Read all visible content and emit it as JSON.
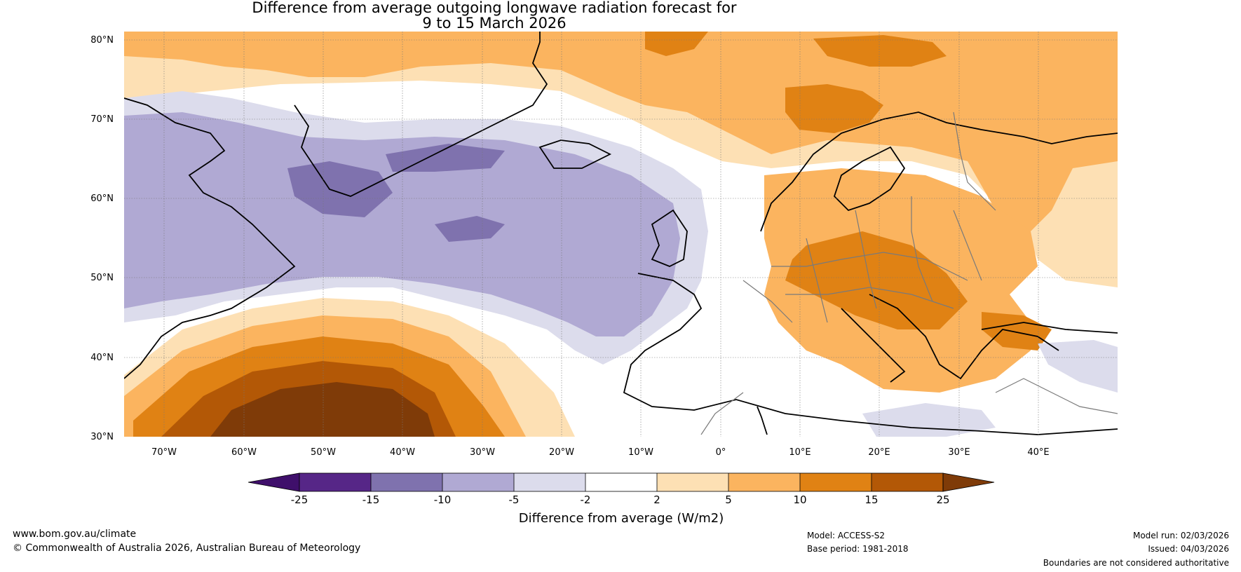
{
  "title": {
    "line1": "Difference from average outgoing longwave radiation forecast for",
    "line2": "9 to 15 March 2026"
  },
  "map": {
    "lat_ticks": [
      "30°N",
      "40°N",
      "50°N",
      "60°N",
      "70°N",
      "80°N"
    ],
    "lon_ticks": [
      "70°W",
      "60°W",
      "50°W",
      "40°W",
      "30°W",
      "20°W",
      "10°W",
      "0°",
      "10°E",
      "20°E",
      "30°E",
      "40°E"
    ],
    "extent": {
      "lon_min": -75,
      "lon_max": 50,
      "lat_min": 30,
      "lat_max": 81
    }
  },
  "legend": {
    "label": "Difference from average (W/m2)",
    "tick_labels": [
      "-25",
      "-15",
      "-10",
      "-5",
      "-2",
      "2",
      "5",
      "10",
      "15",
      "25"
    ],
    "colors": [
      "#3f0f6b",
      "#562687",
      "#7f72ae",
      "#b0a9d3",
      "#dcdcec",
      "#ffffff",
      "#fde0b4",
      "#fbb45f",
      "#e08214",
      "#b35806",
      "#7f3b08"
    ]
  },
  "footer": {
    "website": "www.bom.gov.au/climate",
    "copyright": "© Commonwealth of Australia 2026, Australian Bureau of Meteorology",
    "model": "Model: ACCESS-S2",
    "base_period": "Base period: 1981-2018",
    "model_run": "Model run: 02/03/2026",
    "issued": "Issued: 04/03/2026",
    "disclaimer": "Boundaries are not considered authoritative"
  }
}
